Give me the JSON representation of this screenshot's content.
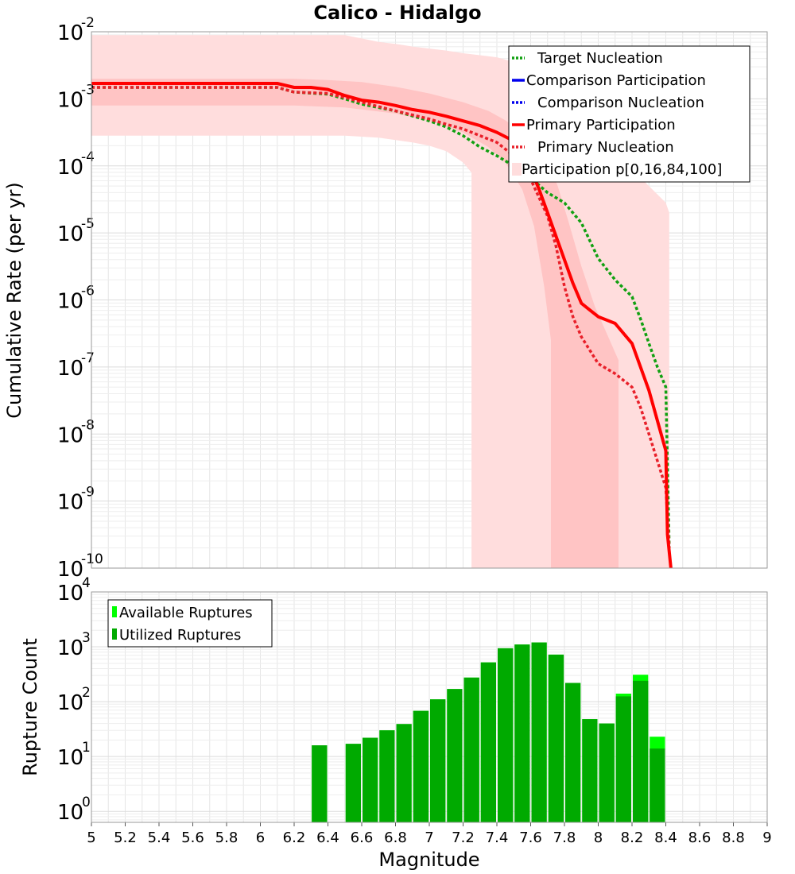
{
  "chart_data": [
    {
      "type": "line",
      "title": "Calico - Hidalgo",
      "xlabel": "Magnitude",
      "ylabel": "Cumulative Rate (per yr)",
      "xlim": [
        5,
        9
      ],
      "ylim_log10": [
        -10,
        -2
      ],
      "y_ticks": [
        {
          "base": "10",
          "exp": "-2"
        },
        {
          "base": "10",
          "exp": "-3"
        },
        {
          "base": "10",
          "exp": "-4"
        },
        {
          "base": "10",
          "exp": "-5"
        },
        {
          "base": "10",
          "exp": "-6"
        },
        {
          "base": "10",
          "exp": "-7"
        },
        {
          "base": "10",
          "exp": "-8"
        },
        {
          "base": "10",
          "exp": "-9"
        },
        {
          "base": "10",
          "exp": "-10"
        }
      ],
      "legend": [
        {
          "label": "Target Nucleation",
          "color": "#11a011",
          "style": "dotted"
        },
        {
          "label": "Comparison Participation",
          "color": "#0000ee",
          "style": "solid"
        },
        {
          "label": "Comparison Nucleation",
          "color": "#0000ee",
          "style": "dotted"
        },
        {
          "label": "Primary Participation",
          "color": "#ff0000",
          "style": "solid"
        },
        {
          "label": "Primary Nucleation",
          "color": "#e8202a",
          "style": "dotted"
        },
        {
          "label": "Participation p[0,16,84,100]",
          "color": "#ffdddd",
          "style": "band"
        }
      ],
      "bands": {
        "outer": {
          "x": [
            5,
            5.8,
            6.2,
            6.5,
            6.7,
            6.9,
            7.0,
            7.1,
            7.2,
            7.25,
            7.25,
            7.3,
            7.4,
            7.5,
            7.6,
            7.7,
            7.8,
            7.9,
            8.0,
            8.1,
            8.2,
            8.3,
            8.38,
            8.42,
            8.42,
            8.4,
            8.3,
            8.2,
            8.1,
            8.0,
            7.9,
            7.8,
            7.7,
            7.6,
            7.5,
            7.4,
            7.3,
            7.2,
            7.1,
            7.0,
            6.9,
            6.8,
            6.7,
            6.6,
            6.5,
            5
          ],
          "log10": [
            -3.55,
            -3.55,
            -3.55,
            -3.55,
            -3.58,
            -3.65,
            -3.7,
            -3.78,
            -3.95,
            -4.1,
            -10,
            -10,
            -10,
            -10,
            -10,
            -10,
            -10,
            -10,
            -10,
            -10,
            -10,
            -10,
            -10,
            -10,
            -4.7,
            -4.55,
            -4.3,
            -4.05,
            -3.8,
            -3.55,
            -3.3,
            -3.05,
            -2.8,
            -2.6,
            -2.45,
            -2.38,
            -2.35,
            -2.32,
            -2.28,
            -2.25,
            -2.22,
            -2.18,
            -2.15,
            -2.1,
            -2.05,
            -2.05
          ]
        },
        "inner": {
          "x": [
            5,
            6.2,
            6.5,
            6.8,
            7.0,
            7.2,
            7.35,
            7.45,
            7.55,
            7.62,
            7.68,
            7.72,
            7.72,
            8.12,
            8.12,
            7.98,
            7.9,
            7.82,
            7.76,
            7.7,
            7.62,
            7.55,
            7.45,
            7.35,
            7.2,
            7.0,
            6.8,
            6.6,
            6.4,
            6.2,
            5
          ],
          "log10": [
            -3.1,
            -3.1,
            -3.13,
            -3.22,
            -3.33,
            -3.5,
            -3.72,
            -3.95,
            -4.35,
            -4.9,
            -5.8,
            -6.6,
            -10,
            -10,
            -6.9,
            -6.1,
            -5.5,
            -4.8,
            -4.3,
            -3.9,
            -3.65,
            -3.5,
            -3.32,
            -3.18,
            -3.05,
            -2.92,
            -2.82,
            -2.75,
            -2.72,
            -2.7,
            -2.7
          ]
        }
      },
      "series": [
        {
          "name": "Target Nucleation",
          "color": "#11a011",
          "style": "dotted",
          "x": [
            5,
            5.2,
            5.4,
            5.6,
            5.8,
            6,
            6.1,
            6.2,
            6.4,
            6.5,
            6.6,
            6.8,
            7.0,
            7.1,
            7.2,
            7.3,
            7.4,
            7.5,
            7.6,
            7.7,
            7.8,
            7.9,
            8.0,
            8.1,
            8.2,
            8.25,
            8.3,
            8.35,
            8.4,
            8.42
          ],
          "log10": [
            -2.83,
            -2.83,
            -2.83,
            -2.83,
            -2.83,
            -2.83,
            -2.83,
            -2.9,
            -2.93,
            -3.0,
            -3.08,
            -3.18,
            -3.33,
            -3.42,
            -3.55,
            -3.72,
            -3.85,
            -4.0,
            -4.18,
            -4.4,
            -4.55,
            -4.85,
            -5.38,
            -5.7,
            -5.95,
            -6.28,
            -6.65,
            -7.0,
            -7.3,
            -9.7
          ]
        },
        {
          "name": "Primary Nucleation",
          "color": "#e8202a",
          "style": "dotted",
          "x": [
            5,
            5.2,
            5.4,
            5.6,
            5.8,
            6,
            6.1,
            6.2,
            6.4,
            6.5,
            6.6,
            6.8,
            7.0,
            7.1,
            7.2,
            7.3,
            7.4,
            7.5,
            7.55,
            7.6,
            7.7,
            7.75,
            7.8,
            7.85,
            7.9,
            7.95,
            8.0,
            8.1,
            8.2,
            8.25,
            8.3,
            8.35,
            8.4,
            8.42
          ],
          "log10": [
            -2.83,
            -2.83,
            -2.83,
            -2.83,
            -2.83,
            -2.83,
            -2.83,
            -2.9,
            -2.92,
            -2.98,
            -3.05,
            -3.18,
            -3.3,
            -3.38,
            -3.45,
            -3.55,
            -3.65,
            -3.85,
            -4.0,
            -4.2,
            -4.75,
            -5.2,
            -5.8,
            -6.25,
            -6.55,
            -6.75,
            -6.95,
            -7.1,
            -7.3,
            -7.6,
            -8.0,
            -8.4,
            -8.8,
            -9.7
          ]
        },
        {
          "name": "Primary Participation",
          "color": "#ff0000",
          "style": "solid",
          "x": [
            5,
            5.2,
            5.4,
            5.6,
            5.8,
            6,
            6.1,
            6.2,
            6.3,
            6.4,
            6.5,
            6.6,
            6.7,
            6.8,
            6.9,
            7.0,
            7.1,
            7.2,
            7.3,
            7.4,
            7.5,
            7.55,
            7.6,
            7.65,
            7.7,
            7.75,
            7.8,
            7.85,
            7.9,
            7.95,
            8.0,
            8.1,
            8.2,
            8.3,
            8.4,
            8.41,
            8.43
          ],
          "log10": [
            -2.77,
            -2.77,
            -2.77,
            -2.77,
            -2.77,
            -2.77,
            -2.77,
            -2.83,
            -2.83,
            -2.86,
            -2.95,
            -3.02,
            -3.05,
            -3.1,
            -3.16,
            -3.2,
            -3.26,
            -3.33,
            -3.4,
            -3.5,
            -3.63,
            -3.8,
            -4.05,
            -4.35,
            -4.7,
            -5.05,
            -5.4,
            -5.75,
            -6.05,
            -6.15,
            -6.25,
            -6.35,
            -6.65,
            -7.35,
            -8.25,
            -9.5,
            -10
          ]
        }
      ]
    },
    {
      "type": "bar",
      "xlabel": "Magnitude",
      "ylabel": "Rupture Count",
      "xlim": [
        5,
        9
      ],
      "ylim_log10": [
        -0.2,
        4
      ],
      "x_ticks": [
        "5",
        "5.2",
        "5.4",
        "5.6",
        "5.8",
        "6",
        "6.2",
        "6.4",
        "6.6",
        "6.8",
        "7",
        "7.2",
        "7.4",
        "7.6",
        "7.8",
        "8",
        "8.2",
        "8.4",
        "8.6",
        "8.8",
        "9"
      ],
      "y_ticks": [
        {
          "base": "10",
          "exp": "4"
        },
        {
          "base": "10",
          "exp": "3"
        },
        {
          "base": "10",
          "exp": "2"
        },
        {
          "base": "10",
          "exp": "1"
        },
        {
          "base": "10",
          "exp": "0"
        }
      ],
      "legend": [
        {
          "label": "Available Ruptures",
          "color": "#00ff00"
        },
        {
          "label": "Utilized Ruptures",
          "color": "#00aa00"
        }
      ],
      "bin_width": 0.1,
      "categories": [
        6.35,
        6.55,
        6.65,
        6.75,
        6.85,
        6.95,
        7.05,
        7.15,
        7.25,
        7.35,
        7.45,
        7.55,
        7.65,
        7.75,
        7.85,
        7.95,
        8.05,
        8.15,
        8.25,
        8.35
      ],
      "series": [
        {
          "name": "Available Ruptures",
          "color": "#00ff00",
          "values": [
            16,
            17,
            22,
            30,
            39,
            68,
            110,
            170,
            275,
            520,
            940,
            1100,
            1200,
            720,
            220,
            48,
            40,
            140,
            310,
            23
          ]
        },
        {
          "name": "Utilized Ruptures",
          "color": "#00aa00",
          "values": [
            16,
            17,
            22,
            30,
            39,
            68,
            110,
            170,
            275,
            520,
            940,
            1100,
            1200,
            720,
            220,
            48,
            40,
            125,
            240,
            14
          ]
        }
      ]
    }
  ]
}
